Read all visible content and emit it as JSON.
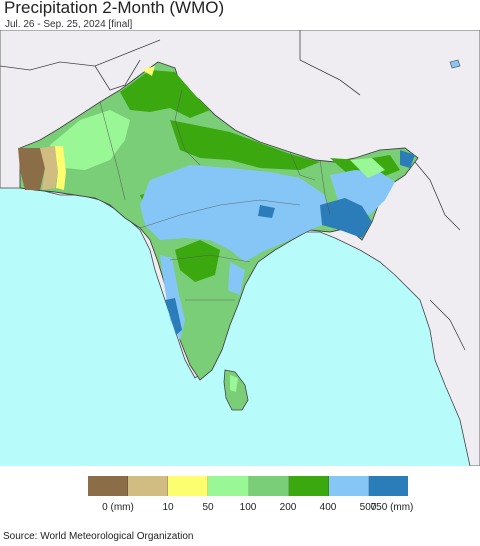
{
  "map": {
    "title": "Precipitation 2-Month (WMO)",
    "subtitle": "Jul. 26 - Sep. 25, 2024 [final]",
    "source": "Source: World Meteorological Organization",
    "region": "South Asia",
    "colors": {
      "ocean": "#b7fbfb",
      "outside_land": "#efedf2",
      "border": "#444444"
    }
  },
  "legend": {
    "classes": [
      {
        "color": "#8b6d47"
      },
      {
        "color": "#d1bd82"
      },
      {
        "color": "#fdfd70"
      },
      {
        "color": "#99f795"
      },
      {
        "color": "#7ace78"
      },
      {
        "color": "#3ca80f"
      },
      {
        "color": "#86c6f6"
      },
      {
        "color": "#2a7db8"
      }
    ],
    "ticks": [
      "0 (mm)",
      "10",
      "50",
      "100",
      "200",
      "400",
      "500",
      "750 (mm)"
    ]
  }
}
